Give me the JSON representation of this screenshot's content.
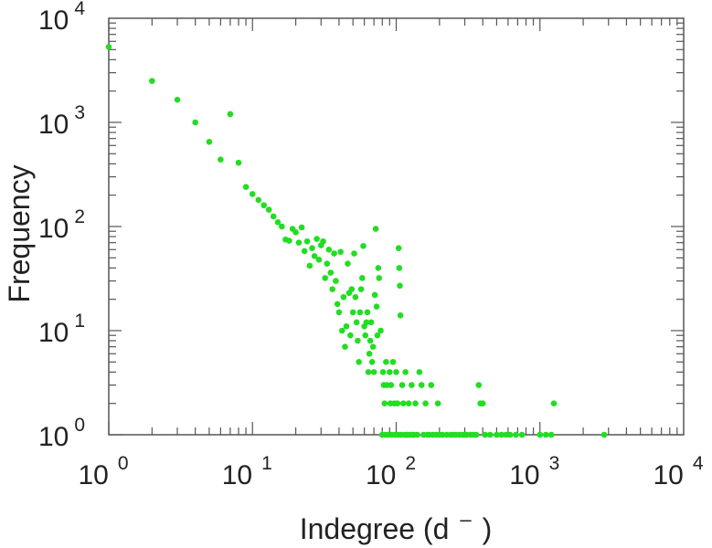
{
  "chart_data": {
    "type": "scatter",
    "title": "",
    "xlabel": "Indegree (d",
    "xlabel_superscript": "–",
    "xlabel_close": ")",
    "ylabel": "Frequency",
    "x_scale": "log",
    "y_scale": "log",
    "xlim": [
      1,
      10000
    ],
    "ylim": [
      1,
      10000
    ],
    "grid": false,
    "legend": "none",
    "point_color": "#22dd22",
    "axis_color": "#555555",
    "x_ticks": [
      {
        "base": "10",
        "exp": "0"
      },
      {
        "base": "10",
        "exp": "1"
      },
      {
        "base": "10",
        "exp": "2"
      },
      {
        "base": "10",
        "exp": "3"
      },
      {
        "base": "10",
        "exp": "4"
      }
    ],
    "y_ticks": [
      {
        "base": "10",
        "exp": "0"
      },
      {
        "base": "10",
        "exp": "1"
      },
      {
        "base": "10",
        "exp": "2"
      },
      {
        "base": "10",
        "exp": "3"
      },
      {
        "base": "10",
        "exp": "4"
      }
    ],
    "series": [
      {
        "points": [
          [
            1,
            5300
          ],
          [
            2,
            2500
          ],
          [
            3,
            1650
          ],
          [
            4,
            1000
          ],
          [
            5,
            650
          ],
          [
            6,
            440
          ],
          [
            7,
            1200
          ],
          [
            8,
            410
          ],
          [
            9,
            240
          ],
          [
            10,
            205
          ],
          [
            11,
            180
          ],
          [
            12,
            160
          ],
          [
            13,
            145
          ],
          [
            14,
            125
          ],
          [
            15,
            110
          ],
          [
            16,
            100
          ],
          [
            17,
            75
          ],
          [
            18,
            73
          ],
          [
            19,
            95
          ],
          [
            20,
            88
          ],
          [
            21,
            70
          ],
          [
            22,
            98
          ],
          [
            23,
            58
          ],
          [
            24,
            72
          ],
          [
            25,
            42
          ],
          [
            26,
            62
          ],
          [
            27,
            52
          ],
          [
            28,
            76
          ],
          [
            29,
            48
          ],
          [
            30,
            66
          ],
          [
            31,
            72
          ],
          [
            32,
            32
          ],
          [
            33,
            44
          ],
          [
            34,
            60
          ],
          [
            35,
            36
          ],
          [
            36,
            25
          ],
          [
            37,
            55
          ],
          [
            38,
            30
          ],
          [
            39,
            18
          ],
          [
            40,
            15
          ],
          [
            41,
            57
          ],
          [
            42,
            10
          ],
          [
            43,
            21
          ],
          [
            44,
            7
          ],
          [
            45,
            11
          ],
          [
            46,
            44
          ],
          [
            47,
            23
          ],
          [
            48,
            9
          ],
          [
            49,
            25
          ],
          [
            50,
            15
          ],
          [
            51,
            55
          ],
          [
            52,
            21
          ],
          [
            53,
            12
          ],
          [
            54,
            8
          ],
          [
            55,
            5
          ],
          [
            56,
            15
          ],
          [
            57,
            25
          ],
          [
            58,
            32
          ],
          [
            59,
            65
          ],
          [
            60,
            11
          ],
          [
            61,
            9
          ],
          [
            62,
            12
          ],
          [
            63,
            15
          ],
          [
            64,
            4
          ],
          [
            65,
            6
          ],
          [
            66,
            8
          ],
          [
            67,
            12
          ],
          [
            68,
            5
          ],
          [
            69,
            7
          ],
          [
            70,
            4
          ],
          [
            71,
            22
          ],
          [
            72,
            95
          ],
          [
            73,
            17
          ],
          [
            74,
            9
          ],
          [
            75,
            40
          ],
          [
            76,
            32
          ],
          [
            78,
            10
          ],
          [
            80,
            1
          ],
          [
            81,
            4
          ],
          [
            82,
            3
          ],
          [
            83,
            2
          ],
          [
            84,
            1
          ],
          [
            85,
            5
          ],
          [
            86,
            3
          ],
          [
            88,
            1
          ],
          [
            90,
            4
          ],
          [
            91,
            2
          ],
          [
            92,
            3
          ],
          [
            93,
            1
          ],
          [
            95,
            5
          ],
          [
            97,
            2
          ],
          [
            98,
            1
          ],
          [
            100,
            4
          ],
          [
            102,
            2
          ],
          [
            103,
            1
          ],
          [
            104,
            62
          ],
          [
            105,
            40
          ],
          [
            106,
            27
          ],
          [
            107,
            14
          ],
          [
            108,
            1
          ],
          [
            110,
            3
          ],
          [
            112,
            2
          ],
          [
            114,
            1
          ],
          [
            116,
            4
          ],
          [
            118,
            1
          ],
          [
            120,
            1
          ],
          [
            122,
            2
          ],
          [
            125,
            1
          ],
          [
            128,
            3
          ],
          [
            130,
            1
          ],
          [
            133,
            1
          ],
          [
            136,
            2
          ],
          [
            140,
            1
          ],
          [
            145,
            4
          ],
          [
            150,
            3
          ],
          [
            155,
            1
          ],
          [
            160,
            2
          ],
          [
            165,
            1
          ],
          [
            170,
            1
          ],
          [
            175,
            3
          ],
          [
            180,
            1
          ],
          [
            190,
            1
          ],
          [
            195,
            2
          ],
          [
            200,
            1
          ],
          [
            210,
            1
          ],
          [
            225,
            1
          ],
          [
            240,
            1
          ],
          [
            250,
            1
          ],
          [
            260,
            1
          ],
          [
            275,
            1
          ],
          [
            290,
            1
          ],
          [
            300,
            1
          ],
          [
            310,
            1
          ],
          [
            330,
            1
          ],
          [
            345,
            1
          ],
          [
            360,
            1
          ],
          [
            375,
            3
          ],
          [
            385,
            2
          ],
          [
            400,
            2
          ],
          [
            415,
            1
          ],
          [
            450,
            1
          ],
          [
            500,
            1
          ],
          [
            540,
            1
          ],
          [
            580,
            1
          ],
          [
            620,
            1
          ],
          [
            680,
            1
          ],
          [
            750,
            1
          ],
          [
            1000,
            1
          ],
          [
            1100,
            1
          ],
          [
            1200,
            1
          ],
          [
            1250,
            2
          ],
          [
            2800,
            1
          ]
        ]
      }
    ]
  }
}
